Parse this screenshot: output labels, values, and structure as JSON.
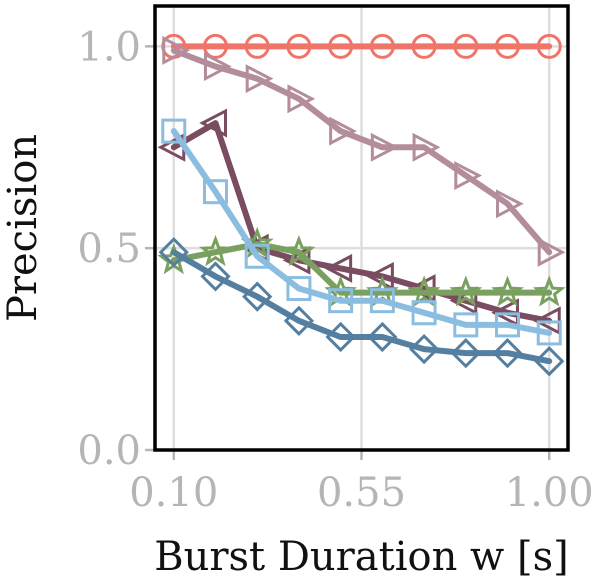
{
  "chart_data": {
    "type": "line",
    "title": "",
    "xlabel": "Burst Duration w [s]",
    "ylabel": "Precision",
    "xlim": [
      0.055,
      1.045
    ],
    "ylim": [
      0.0,
      1.1
    ],
    "x_ticks": [
      {
        "value": 0.1,
        "label": "0.10"
      },
      {
        "value": 0.55,
        "label": "0.55"
      },
      {
        "value": 1.0,
        "label": "1.00"
      }
    ],
    "y_ticks": [
      {
        "value": 0.0,
        "label": "0.0"
      },
      {
        "value": 0.5,
        "label": "0.5"
      },
      {
        "value": 1.0,
        "label": "1.0"
      }
    ],
    "grid": true,
    "legend": "none",
    "x": [
      0.1,
      0.2,
      0.3,
      0.4,
      0.5,
      0.6,
      0.7,
      0.8,
      0.9,
      1.0
    ],
    "series": [
      {
        "marker": "circle",
        "color": "#f07468",
        "values": [
          1.0,
          1.0,
          1.0,
          1.0,
          1.0,
          1.0,
          1.0,
          1.0,
          1.0,
          1.0
        ]
      },
      {
        "marker": "triangle-right",
        "color": "#b38d9c",
        "values": [
          0.99,
          0.95,
          0.92,
          0.87,
          0.79,
          0.75,
          0.75,
          0.68,
          0.61,
          0.49
        ]
      },
      {
        "marker": "triangle-left",
        "color": "#7a4c61",
        "values": [
          0.75,
          0.81,
          0.5,
          0.47,
          0.45,
          0.43,
          0.4,
          0.37,
          0.34,
          0.32
        ]
      },
      {
        "marker": "star",
        "color": "#7aa05f",
        "values": [
          0.47,
          0.49,
          0.51,
          0.49,
          0.39,
          0.39,
          0.39,
          0.39,
          0.39,
          0.39
        ]
      },
      {
        "marker": "square",
        "color": "#8bbde0",
        "values": [
          0.79,
          0.64,
          0.48,
          0.4,
          0.37,
          0.37,
          0.34,
          0.31,
          0.31,
          0.29
        ]
      },
      {
        "marker": "diamond",
        "color": "#557fa0",
        "values": [
          0.49,
          0.43,
          0.38,
          0.32,
          0.28,
          0.28,
          0.25,
          0.24,
          0.24,
          0.22
        ]
      }
    ]
  }
}
